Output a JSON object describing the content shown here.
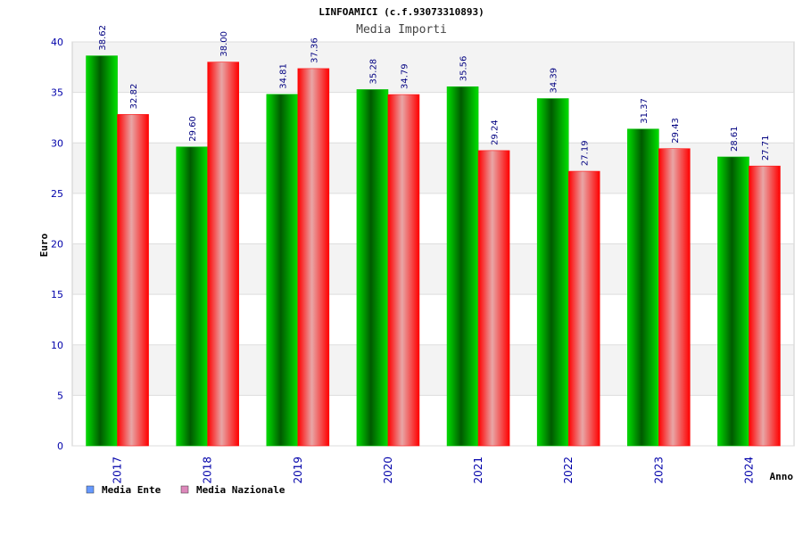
{
  "chart_data": {
    "type": "bar",
    "title": "LINFOAMICI (c.f.93073310893)",
    "subtitle": "Media Importi",
    "xlabel": "Anno",
    "ylabel": "Euro",
    "categories": [
      "2017",
      "2018",
      "2019",
      "2020",
      "2021",
      "2022",
      "2023",
      "2024"
    ],
    "series": [
      {
        "name": "Media Ente",
        "values": [
          38.62,
          29.6,
          34.81,
          35.28,
          35.56,
          34.39,
          31.37,
          28.61
        ],
        "labels": [
          "38.62",
          "29.60",
          "34.81",
          "35.28",
          "35.56",
          "34.39",
          "31.37",
          "28.61"
        ]
      },
      {
        "name": "Media Nazionale",
        "values": [
          32.82,
          38.0,
          37.36,
          34.79,
          29.24,
          27.19,
          29.43,
          27.71
        ],
        "labels": [
          "32.82",
          "38.00",
          "37.36",
          "34.79",
          "29.24",
          "27.19",
          "29.43",
          "27.71"
        ]
      }
    ],
    "yticks": [
      "0",
      "5",
      "10",
      "15",
      "20",
      "25",
      "30",
      "35",
      "40"
    ],
    "ylim": [
      0,
      40
    ],
    "grid": true,
    "grid_bands": true,
    "legend_position": "bottom-left",
    "colors": {
      "series_ente": "#00c000",
      "series_ente_dark": "#006600",
      "series_nazionale": "#ff1010",
      "series_nazionale_light": "#e8a0a0",
      "legend_ente": "#6699ff",
      "legend_nazionale": "#dd88bb",
      "band": "#f3f3f3",
      "grid": "#dddddd",
      "tick_text": "#0000aa",
      "label_text": "#000080"
    }
  }
}
